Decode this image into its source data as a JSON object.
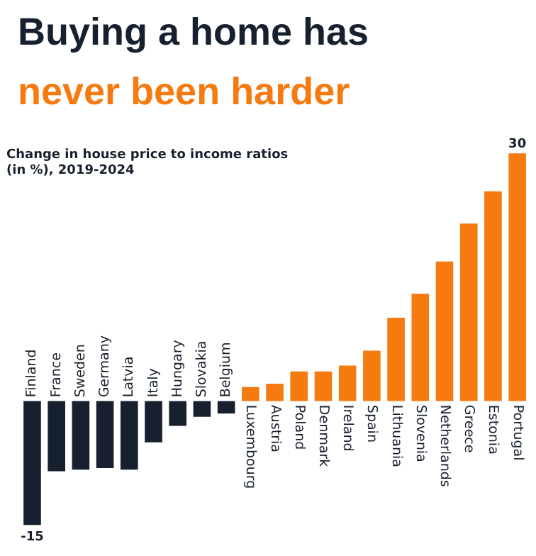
{
  "chart_data": {
    "type": "bar",
    "title": "Buying a home has",
    "subtitle": "never been harder",
    "annotations": [
      "Change in house price to income ratios (in %), 2019-2024"
    ],
    "categories": [
      "Finland",
      "France",
      "Sweden",
      "Germany",
      "Latvia",
      "Italy",
      "Hungary",
      "Slovakia",
      "Belgium",
      "Luxembourg",
      "Austria",
      "Poland",
      "Denmark",
      "Ireland",
      "Spain",
      "Lithuania",
      "Slovenia",
      "Netherlands",
      "Greece",
      "Estonia",
      "Portugal"
    ],
    "values": [
      -15,
      -8.5,
      -8.3,
      -8.1,
      -8.3,
      -5.0,
      -3.0,
      -1.9,
      -1.5,
      1.7,
      2.1,
      3.6,
      3.6,
      4.3,
      6.1,
      10.1,
      13.0,
      16.9,
      21.5,
      25.4,
      30
    ],
    "colors": [
      "#17202e",
      "#17202e",
      "#17202e",
      "#17202e",
      "#17202e",
      "#17202e",
      "#17202e",
      "#17202e",
      "#17202e",
      "#f57a10",
      "#f57a10",
      "#f57a10",
      "#f57a10",
      "#f57a10",
      "#f57a10",
      "#f57a10",
      "#f57a10",
      "#f57a10",
      "#f57a10",
      "#f57a10",
      "#f57a10"
    ],
    "value_labels": [
      "-15",
      null,
      null,
      null,
      null,
      null,
      null,
      null,
      null,
      null,
      null,
      null,
      null,
      null,
      null,
      null,
      null,
      null,
      null,
      null,
      "30"
    ],
    "grid": false
  }
}
